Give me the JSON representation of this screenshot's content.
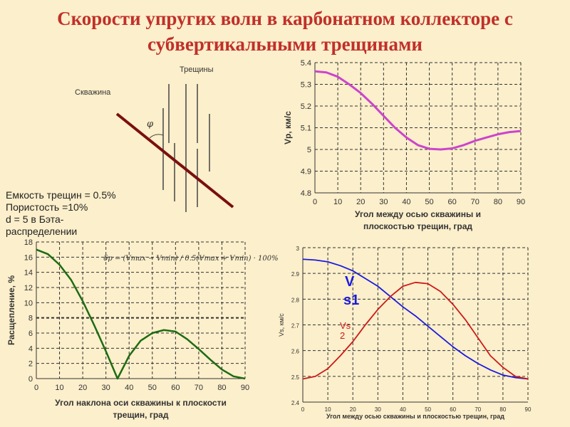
{
  "title_line1": "Скорости упругих волн в карбонатном коллекторе с",
  "title_line2": "субвертикальными трещинами",
  "diagram": {
    "borehole_label": "Скважина",
    "cracks_label": "Трещины",
    "angle_symbol": "φ",
    "borehole_color": "#7a0f0f"
  },
  "params": [
    "Емкость трещин = 0.5%",
    "Пористость =10%",
    "d = 5 в Бэта-",
    "распределении"
  ],
  "chart_data": [
    {
      "type": "line",
      "id": "vp",
      "ylabel": "Vp, км/с",
      "xlabel": [
        "Угол между осью скважины и",
        "плоскостью трещин, град"
      ],
      "xlim": [
        0,
        90
      ],
      "ylim": [
        4.8,
        5.4
      ],
      "xticks": [
        0,
        10,
        20,
        30,
        40,
        50,
        60,
        70,
        80,
        90
      ],
      "yticks": [
        4.8,
        4.9,
        5,
        5.1,
        5.2,
        5.3,
        5.4
      ],
      "ytick_labels": [
        "4.8",
        "4.9",
        "5",
        "5.1",
        "5.2",
        "5.3",
        "5.4"
      ],
      "x": [
        0,
        5,
        10,
        15,
        20,
        25,
        30,
        35,
        40,
        45,
        50,
        55,
        60,
        65,
        70,
        75,
        80,
        85,
        90
      ],
      "series": [
        {
          "name": "Vp",
          "color": "#cc44cc",
          "values": [
            5.36,
            5.355,
            5.335,
            5.3,
            5.26,
            5.21,
            5.155,
            5.1,
            5.055,
            5.02,
            5.003,
            5.0,
            5.005,
            5.02,
            5.04,
            5.055,
            5.07,
            5.08,
            5.085
          ]
        }
      ]
    },
    {
      "type": "line",
      "id": "split",
      "ylabel": "Расщепление, %",
      "xlabel": [
        "Угол наклона оси скважины к плоскости",
        "трещин, град"
      ],
      "formula": "δp = (Vmax − Vmin) / 0.5(Vmax + Vmin) · 100%",
      "xlim": [
        0,
        90
      ],
      "ylim": [
        0,
        18
      ],
      "xticks": [
        0,
        10,
        20,
        30,
        40,
        50,
        60,
        70,
        80,
        90
      ],
      "yticks": [
        0,
        2,
        4,
        6,
        8,
        10,
        12,
        14,
        16,
        18
      ],
      "ytick_labels": [
        "0",
        "2",
        "4",
        "6",
        "8",
        "10",
        "12",
        "14",
        "16",
        "18"
      ],
      "x": [
        0,
        5,
        10,
        15,
        20,
        25,
        30,
        35,
        40,
        45,
        50,
        55,
        60,
        65,
        70,
        75,
        80,
        85,
        90
      ],
      "series": [
        {
          "name": "Расщепление",
          "color": "#1e6b14",
          "values": [
            17,
            16.4,
            15,
            13,
            10.2,
            7,
            3.6,
            0,
            3,
            5,
            6,
            6.4,
            6.2,
            5.2,
            3.9,
            2.5,
            1.2,
            0.3,
            0
          ]
        }
      ]
    },
    {
      "type": "line",
      "id": "vs",
      "ylabel": "Vs, км/с",
      "xlabel": [
        "Угол между осью скважины и плоскостью трещин, град"
      ],
      "xlim": [
        0,
        90
      ],
      "ylim": [
        2.4,
        3
      ],
      "xticks": [
        0,
        10,
        20,
        30,
        40,
        50,
        60,
        70,
        80,
        90
      ],
      "yticks": [
        2.4,
        2.5,
        2.6,
        2.7,
        2.8,
        2.9,
        3
      ],
      "ytick_labels": [
        "2.4",
        "2.5",
        "2.6",
        "2.7",
        "2.8",
        "2.9",
        "3"
      ],
      "x": [
        0,
        5,
        10,
        15,
        20,
        25,
        30,
        35,
        40,
        45,
        50,
        55,
        60,
        65,
        70,
        75,
        80,
        85,
        90
      ],
      "series": [
        {
          "name": "Vs1",
          "label_lines": [
            "V",
            "s1"
          ],
          "color": "#1a1ae0",
          "values": [
            2.955,
            2.952,
            2.945,
            2.93,
            2.91,
            2.88,
            2.85,
            2.81,
            2.77,
            2.735,
            2.695,
            2.655,
            2.615,
            2.58,
            2.55,
            2.525,
            2.505,
            2.495,
            2.49
          ]
        },
        {
          "name": "Vs2",
          "label_lines": [
            "Vs",
            "2"
          ],
          "color": "#cc1a1a",
          "values": [
            2.49,
            2.5,
            2.53,
            2.58,
            2.635,
            2.7,
            2.76,
            2.81,
            2.85,
            2.865,
            2.86,
            2.83,
            2.78,
            2.72,
            2.65,
            2.58,
            2.535,
            2.5,
            2.49
          ]
        }
      ]
    }
  ]
}
